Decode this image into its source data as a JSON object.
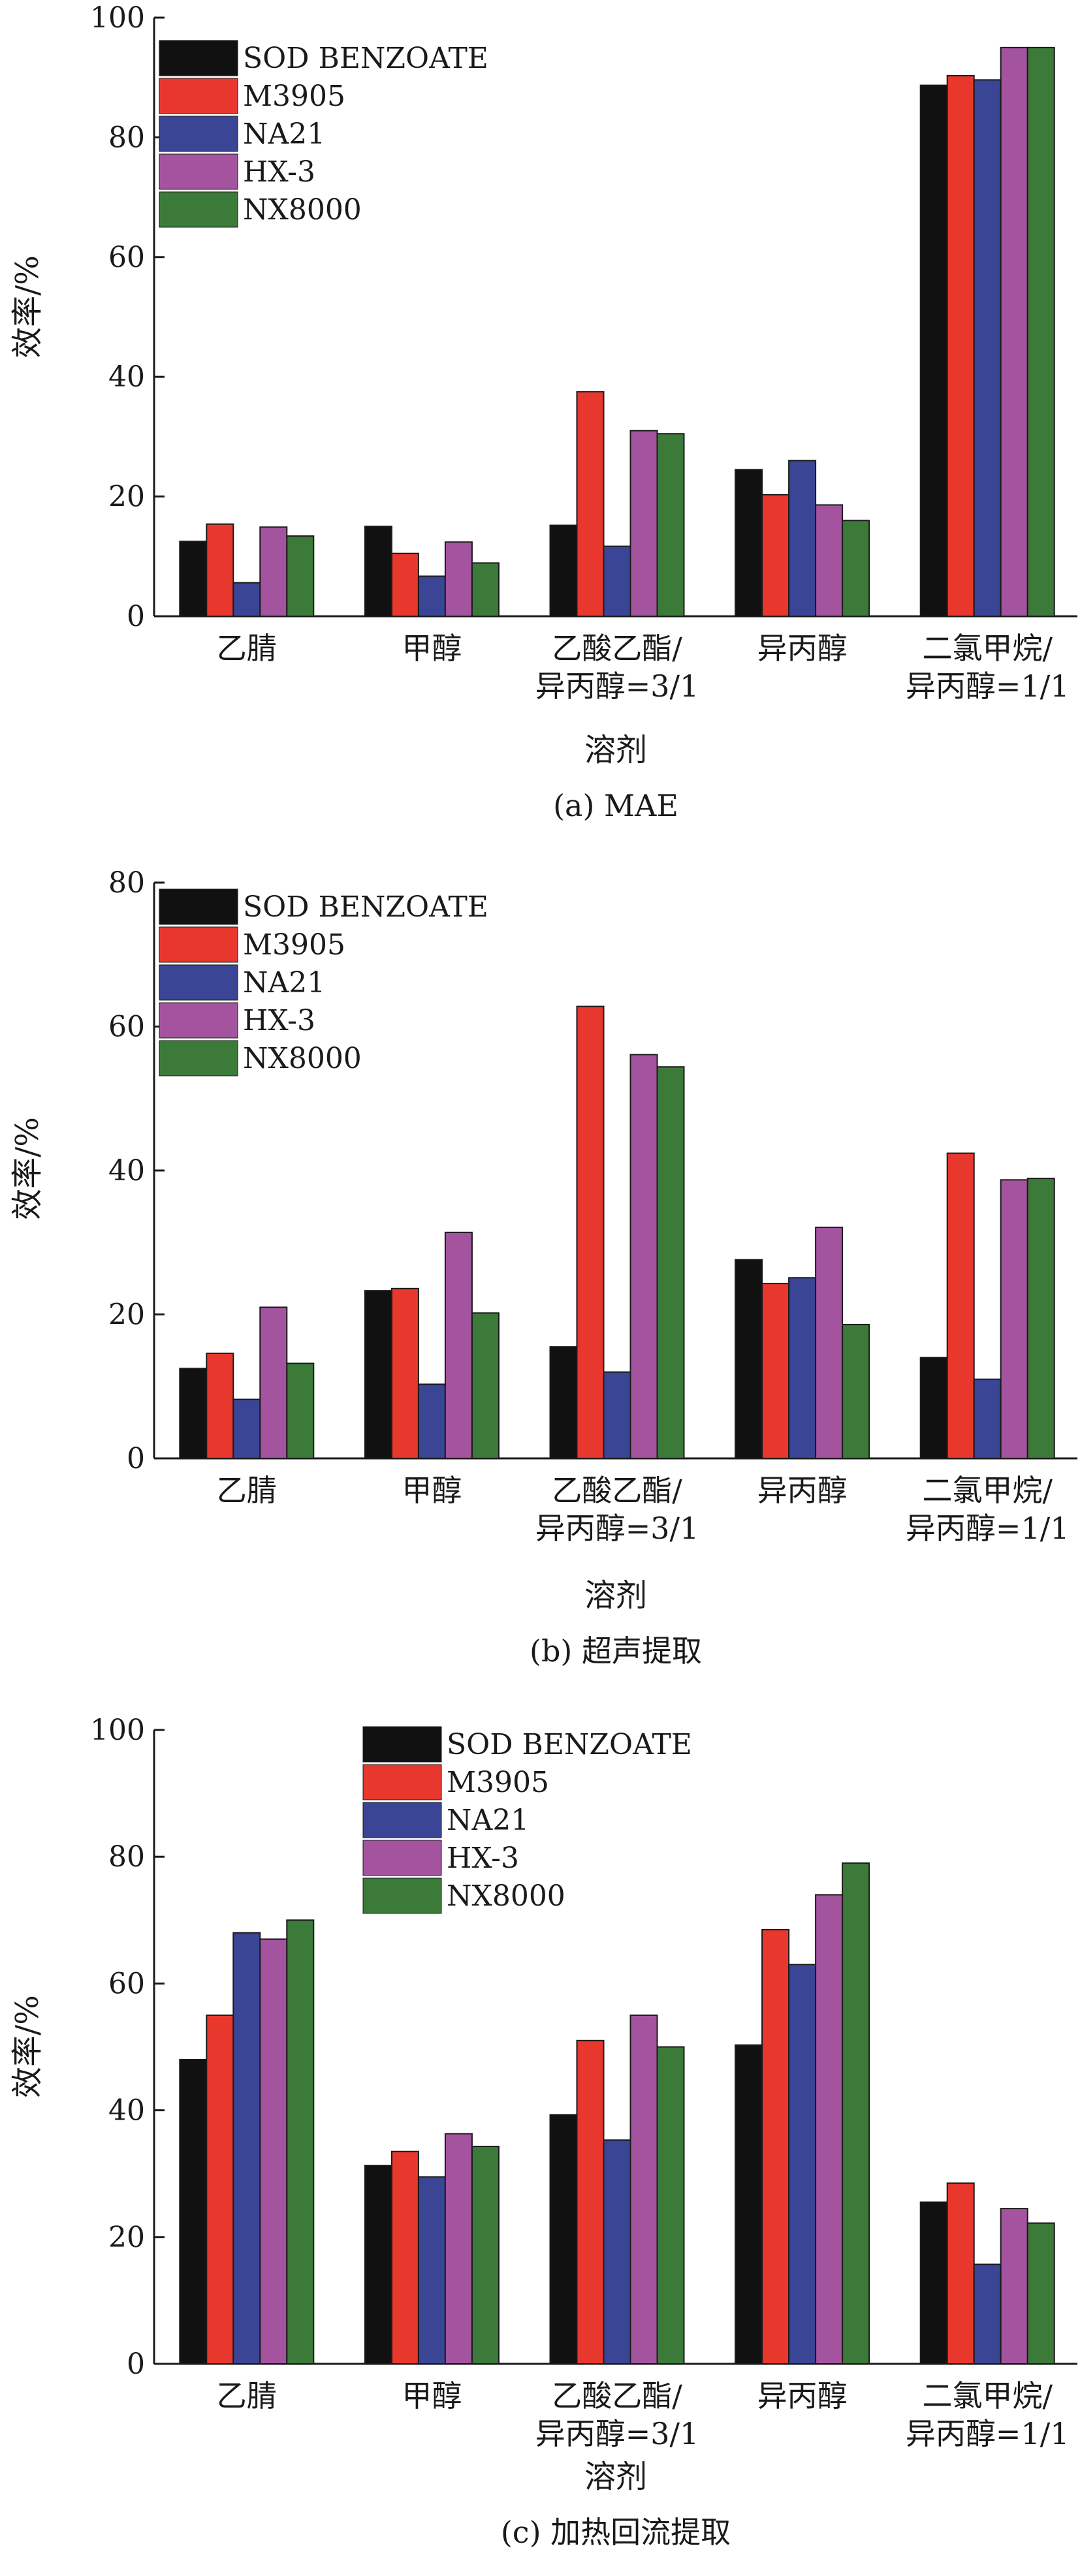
{
  "legend_series": [
    "SOD BENZOATE",
    "M3905",
    "NA21",
    "HX-3",
    "NX8000"
  ],
  "colors": {
    "SOD BENZOATE": "#111111",
    "M3905": "#e8382d",
    "NA21": "#3a4595",
    "HX-3": "#a4549e",
    "NX8000": "#3c7a3a"
  },
  "categories": [
    "乙腈",
    "甲醇",
    "乙酸乙酯/\n异丙醇=3/1",
    "异丙醇",
    "二氯甲烷/\n异丙醇=1/1"
  ],
  "chart_data": [
    {
      "type": "bar",
      "caption": "(a) MAE",
      "ylabel": "效率/%",
      "xlabel": "溶剂",
      "ylim": [
        0,
        100
      ],
      "yticks": [
        0,
        20,
        40,
        60,
        80,
        100
      ],
      "legend_position": "top-left",
      "categories": [
        "乙腈",
        "甲醇",
        "乙酸乙酯/\n异丙醇=3/1",
        "异丙醇",
        "二氯甲烷/\n异丙醇=1/1"
      ],
      "series": [
        {
          "name": "SOD BENZOATE",
          "values": [
            12.5,
            15.0,
            15.2,
            24.5,
            88.7
          ]
        },
        {
          "name": "M3905",
          "values": [
            15.4,
            10.5,
            37.5,
            20.3,
            90.3
          ]
        },
        {
          "name": "NA21",
          "values": [
            5.6,
            6.7,
            11.7,
            26.0,
            89.6
          ]
        },
        {
          "name": "HX-3",
          "values": [
            14.9,
            12.4,
            31.0,
            18.6,
            95.0
          ]
        },
        {
          "name": "NX8000",
          "values": [
            13.4,
            8.9,
            30.5,
            16.0,
            95.0
          ]
        }
      ]
    },
    {
      "type": "bar",
      "caption": "(b) 超声提取",
      "ylabel": "效率/%",
      "xlabel": "溶剂",
      "ylim": [
        0,
        80
      ],
      "yticks": [
        0,
        20,
        40,
        60,
        80
      ],
      "legend_position": "top-left",
      "categories": [
        "乙腈",
        "甲醇",
        "乙酸乙酯/\n异丙醇=3/1",
        "异丙醇",
        "二氯甲烷/\n异丙醇=1/1"
      ],
      "series": [
        {
          "name": "SOD BENZOATE",
          "values": [
            12.5,
            23.3,
            15.5,
            27.6,
            14.0
          ]
        },
        {
          "name": "M3905",
          "values": [
            14.6,
            23.6,
            62.8,
            24.3,
            42.4
          ]
        },
        {
          "name": "NA21",
          "values": [
            8.2,
            10.3,
            12.0,
            25.1,
            11.0
          ]
        },
        {
          "name": "HX-3",
          "values": [
            21.0,
            31.4,
            56.1,
            32.1,
            38.7
          ]
        },
        {
          "name": "NX8000",
          "values": [
            13.2,
            20.2,
            54.4,
            18.6,
            38.9
          ]
        }
      ]
    },
    {
      "type": "bar",
      "caption": "(c) 加热回流提取",
      "ylabel": "效率/%",
      "xlabel": "溶剂",
      "ylim": [
        0,
        100
      ],
      "yticks": [
        0,
        20,
        40,
        60,
        80,
        100
      ],
      "legend_position": "top-center",
      "categories": [
        "乙腈",
        "甲醇",
        "乙酸乙酯/\n异丙醇=3/1",
        "异丙醇",
        "二氯甲烷/\n异丙醇=1/1"
      ],
      "series": [
        {
          "name": "SOD BENZOATE",
          "values": [
            48.0,
            31.3,
            39.3,
            50.3,
            25.5
          ]
        },
        {
          "name": "M3905",
          "values": [
            55.0,
            33.5,
            51.0,
            68.5,
            28.5
          ]
        },
        {
          "name": "NA21",
          "values": [
            68.0,
            29.5,
            35.3,
            63.0,
            15.7
          ]
        },
        {
          "name": "HX-3",
          "values": [
            67.0,
            36.3,
            55.0,
            74.0,
            24.5
          ]
        },
        {
          "name": "NX8000",
          "values": [
            70.0,
            34.3,
            50.0,
            79.0,
            22.2
          ]
        }
      ]
    }
  ]
}
